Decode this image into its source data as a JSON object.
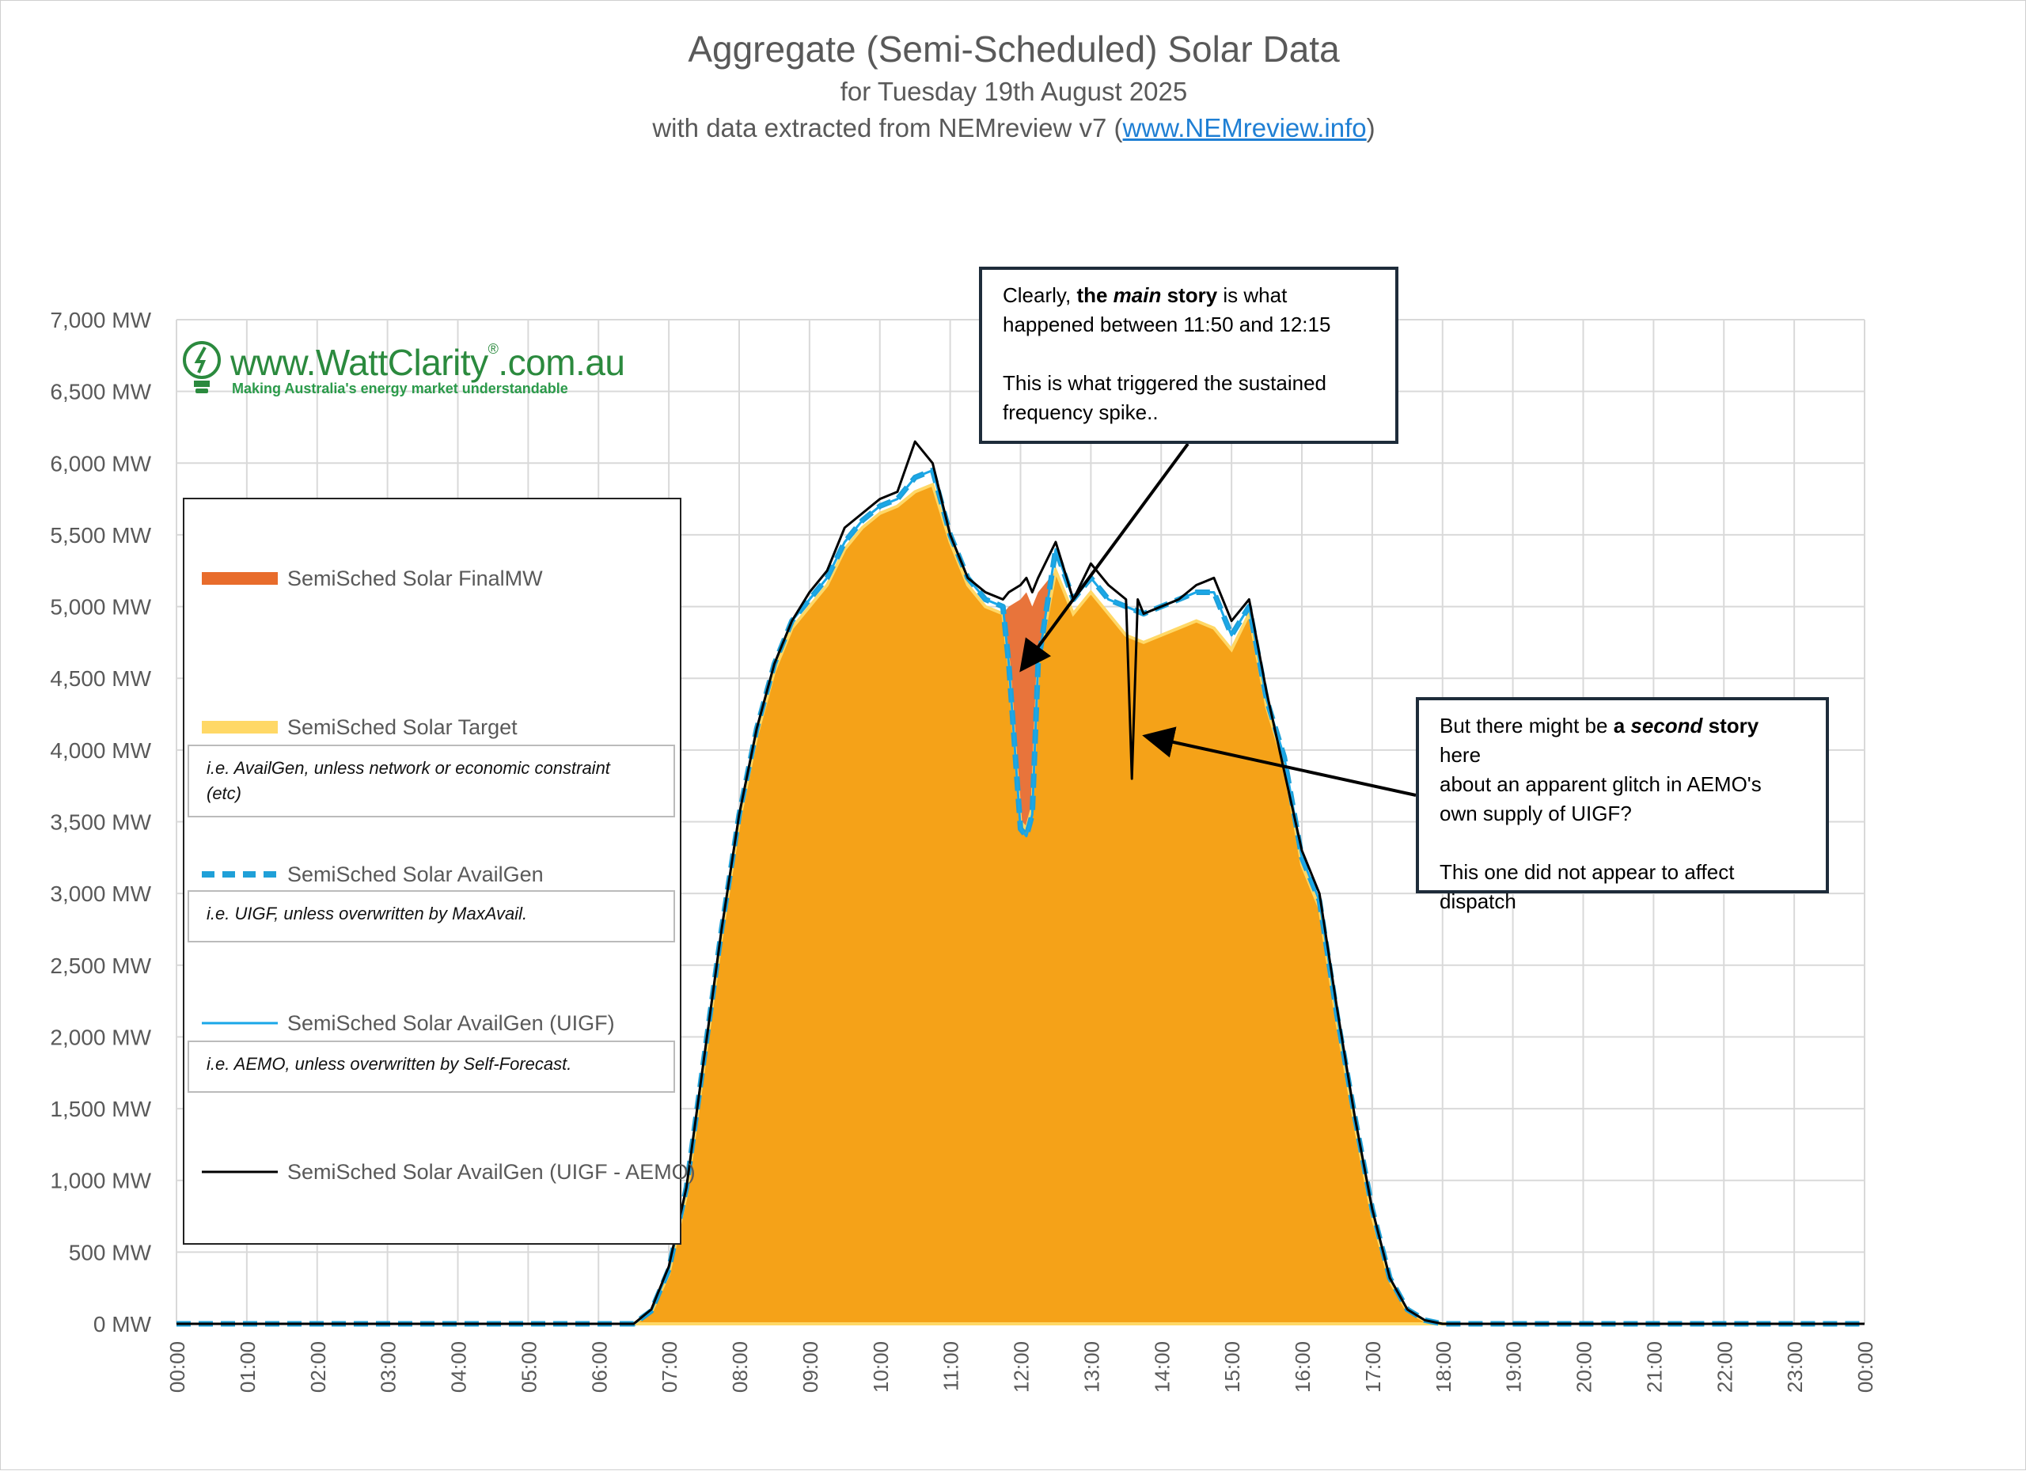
{
  "header": {
    "title": "Aggregate (Semi-Scheduled) Solar Data",
    "subtitle": "for Tuesday 19th August 2025",
    "source_prefix": "with data extracted from NEMreview v7 (",
    "source_link": "www.NEMreview.info",
    "source_suffix": ")"
  },
  "logo": {
    "url_text": "www.WattClarity",
    "url_suffix": ".com.au",
    "registered_mark": "®",
    "tagline": "Making Australia's energy market understandable"
  },
  "legend": {
    "items": [
      {
        "label": "SemiSched Solar FinalMW",
        "note": ""
      },
      {
        "label": "SemiSched Solar Target",
        "note_line1": "i.e. AvailGen, unless network or economic constraint",
        "note_line2": "(etc)"
      },
      {
        "label": "SemiSched Solar AvailGen",
        "note_line1": "i.e. UIGF, unless overwritten by MaxAvail.",
        "note_line2": ""
      },
      {
        "label": "SemiSched Solar AvailGen (UIGF)",
        "note_line1": "i.e. AEMO, unless overwritten by Self-Forecast.",
        "note_line2": ""
      },
      {
        "label": "SemiSched Solar AvailGen (UIGF - AEMO)",
        "note": ""
      }
    ]
  },
  "callouts": {
    "main": {
      "line1_pre": "Clearly, ",
      "line1_bold": "the ",
      "line1_bold_italic": "main",
      "line1_bold2": " story",
      "line1_post": " is what",
      "line2": "happened between 11:50 and 12:15",
      "line3": "This is what triggered the sustained",
      "line4": "frequency spike.."
    },
    "second": {
      "line1_pre": "But there might be ",
      "line1_bold": "a ",
      "line1_bold_italic": "second",
      "line1_bold2": " story",
      "line1_post": " here",
      "line2": "about an apparent glitch in AEMO's",
      "line3": "own supply of UIGF?",
      "line4": "This one did not appear to affect",
      "line5": "dispatch"
    }
  },
  "colors": {
    "finalmw": "#f5a218",
    "finalmw_legend": "#e86c2c",
    "curtailment_fill": "#e8743b",
    "target": "#ffd866",
    "availgen": "#1fa0d8",
    "uigf": "#1aa7e8",
    "uigf_aemo": "#000000",
    "grid": "#d9d9d9",
    "axis_text": "#595959"
  },
  "chart_data": {
    "type": "area",
    "title": "Aggregate (Semi-Scheduled) Solar Data",
    "xlabel": "",
    "ylabel": "",
    "ylim": [
      0,
      7000
    ],
    "y_ticks": [
      0,
      500,
      1000,
      1500,
      2000,
      2500,
      3000,
      3500,
      4000,
      4500,
      5000,
      5500,
      6000,
      6500,
      7000
    ],
    "y_tick_labels": [
      "0 MW",
      "500 MW",
      "1,000 MW",
      "1,500 MW",
      "2,000 MW",
      "2,500 MW",
      "3,000 MW",
      "3,500 MW",
      "4,000 MW",
      "4,500 MW",
      "5,000 MW",
      "5,500 MW",
      "6,000 MW",
      "6,500 MW",
      "7,000 MW"
    ],
    "x_tick_labels": [
      "00:00",
      "01:00",
      "02:00",
      "03:00",
      "04:00",
      "05:00",
      "06:00",
      "07:00",
      "08:00",
      "09:00",
      "10:00",
      "11:00",
      "12:00",
      "13:00",
      "14:00",
      "15:00",
      "16:00",
      "17:00",
      "18:00",
      "19:00",
      "20:00",
      "21:00",
      "22:00",
      "23:00",
      "00:00"
    ],
    "grid": true,
    "legend_position": "left",
    "series": [
      {
        "name": "SemiSched Solar FinalMW",
        "x": [
          "06:30",
          "06:45",
          "07:00",
          "07:15",
          "07:30",
          "07:45",
          "08:00",
          "08:15",
          "08:30",
          "08:45",
          "09:00",
          "09:15",
          "09:30",
          "09:45",
          "10:00",
          "10:15",
          "10:30",
          "10:45",
          "11:00",
          "11:15",
          "11:30",
          "11:45",
          "11:50",
          "12:00",
          "12:05",
          "12:10",
          "12:15",
          "12:30",
          "12:45",
          "13:00",
          "13:15",
          "13:30",
          "13:45",
          "14:00",
          "14:15",
          "14:30",
          "14:45",
          "15:00",
          "15:15",
          "15:30",
          "15:45",
          "16:00",
          "16:15",
          "16:30",
          "16:45",
          "17:00",
          "17:15",
          "17:30",
          "17:45",
          "18:00",
          "18:15"
        ],
        "values": [
          0,
          80,
          350,
          900,
          1800,
          2700,
          3500,
          4100,
          4550,
          4850,
          5000,
          5150,
          5400,
          5550,
          5650,
          5700,
          5800,
          5850,
          5450,
          5150,
          5000,
          4950,
          5000,
          5050,
          5100,
          5000,
          5100,
          5250,
          4950,
          5100,
          4950,
          4800,
          4750,
          4800,
          4850,
          4900,
          4850,
          4700,
          4950,
          4300,
          3900,
          3200,
          2900,
          2100,
          1400,
          750,
          300,
          90,
          20,
          0,
          0
        ]
      },
      {
        "name": "SemiSched Solar Target",
        "x": [
          "06:30",
          "06:45",
          "07:00",
          "07:15",
          "07:30",
          "07:45",
          "08:00",
          "08:15",
          "08:30",
          "08:45",
          "09:00",
          "09:15",
          "09:30",
          "09:45",
          "10:00",
          "10:15",
          "10:30",
          "10:45",
          "11:00",
          "11:15",
          "11:30",
          "11:45",
          "11:50",
          "12:00",
          "12:05",
          "12:10",
          "12:15",
          "12:30",
          "12:45",
          "13:00",
          "13:15",
          "13:30",
          "13:45",
          "14:00",
          "14:15",
          "14:30",
          "14:45",
          "15:00",
          "15:15",
          "15:30",
          "15:45",
          "16:00",
          "16:15",
          "16:30",
          "16:45",
          "17:00",
          "17:15",
          "17:30",
          "17:45",
          "18:00",
          "18:15"
        ],
        "values": [
          0,
          80,
          350,
          900,
          1800,
          2700,
          3500,
          4100,
          4550,
          4850,
          5000,
          5150,
          5400,
          5550,
          5650,
          5700,
          5800,
          5850,
          5450,
          5150,
          5000,
          4950,
          4600,
          3500,
          3450,
          3600,
          4600,
          5250,
          4950,
          5100,
          4950,
          4800,
          4750,
          4800,
          4850,
          4900,
          4850,
          4700,
          4950,
          4300,
          3900,
          3200,
          2900,
          2100,
          1400,
          750,
          300,
          90,
          20,
          0,
          0
        ]
      },
      {
        "name": "SemiSched Solar AvailGen",
        "x": [
          "06:30",
          "06:45",
          "07:00",
          "07:15",
          "07:30",
          "07:45",
          "08:00",
          "08:15",
          "08:30",
          "08:45",
          "09:00",
          "09:15",
          "09:30",
          "09:45",
          "10:00",
          "10:15",
          "10:30",
          "10:45",
          "11:00",
          "11:15",
          "11:30",
          "11:45",
          "11:50",
          "12:00",
          "12:05",
          "12:10",
          "12:15",
          "12:30",
          "12:45",
          "13:00",
          "13:15",
          "13:30",
          "13:45",
          "14:00",
          "14:15",
          "14:30",
          "14:45",
          "15:00",
          "15:15",
          "15:30",
          "15:45",
          "16:00",
          "16:15",
          "16:30",
          "16:45",
          "17:00",
          "17:15",
          "17:30",
          "17:45",
          "18:00",
          "18:15"
        ],
        "values": [
          0,
          90,
          380,
          950,
          1850,
          2750,
          3550,
          4150,
          4600,
          4900,
          5050,
          5200,
          5450,
          5600,
          5700,
          5750,
          5900,
          5950,
          5500,
          5200,
          5050,
          5000,
          4600,
          3450,
          3400,
          3550,
          4600,
          5400,
          5050,
          5200,
          5050,
          5000,
          4950,
          5000,
          5050,
          5100,
          5100,
          4800,
          5000,
          4350,
          3950,
          3250,
          2950,
          2150,
          1450,
          800,
          320,
          100,
          25,
          0,
          0
        ]
      },
      {
        "name": "SemiSched Solar AvailGen (UIGF)",
        "x": [
          "06:30",
          "06:45",
          "07:00",
          "07:15",
          "07:30",
          "07:45",
          "08:00",
          "08:15",
          "08:30",
          "08:45",
          "09:00",
          "09:15",
          "09:30",
          "09:45",
          "10:00",
          "10:15",
          "10:30",
          "10:45",
          "11:00",
          "11:15",
          "11:30",
          "11:45",
          "11:50",
          "12:00",
          "12:05",
          "12:10",
          "12:15",
          "12:30",
          "12:45",
          "13:00",
          "13:15",
          "13:30",
          "13:45",
          "14:00",
          "14:15",
          "14:30",
          "14:45",
          "15:00",
          "15:15",
          "15:30",
          "15:45",
          "16:00",
          "16:15",
          "16:30",
          "16:45",
          "17:00",
          "17:15",
          "17:30",
          "17:45",
          "18:00",
          "18:15"
        ],
        "values": [
          0,
          90,
          380,
          950,
          1850,
          2750,
          3550,
          4150,
          4600,
          4900,
          5050,
          5200,
          5450,
          5600,
          5700,
          5750,
          5900,
          5950,
          5500,
          5200,
          5050,
          5000,
          4600,
          3450,
          3400,
          3550,
          4600,
          5400,
          5050,
          5200,
          5050,
          5000,
          4950,
          5000,
          5050,
          5100,
          5100,
          4800,
          5000,
          4350,
          3950,
          3250,
          2950,
          2150,
          1450,
          800,
          320,
          100,
          25,
          0,
          0
        ]
      },
      {
        "name": "SemiSched Solar AvailGen (UIGF - AEMO)",
        "x": [
          "06:30",
          "06:45",
          "07:00",
          "07:15",
          "07:30",
          "07:45",
          "08:00",
          "08:15",
          "08:30",
          "08:45",
          "09:00",
          "09:15",
          "09:30",
          "09:45",
          "10:00",
          "10:15",
          "10:30",
          "10:45",
          "11:00",
          "11:15",
          "11:30",
          "11:45",
          "11:50",
          "12:00",
          "12:05",
          "12:10",
          "12:15",
          "12:30",
          "12:45",
          "13:00",
          "13:15",
          "13:30",
          "13:35",
          "13:40",
          "13:45",
          "14:00",
          "14:15",
          "14:30",
          "14:45",
          "15:00",
          "15:15",
          "15:30",
          "15:45",
          "16:00",
          "16:15",
          "16:30",
          "16:45",
          "17:00",
          "17:15",
          "17:30",
          "17:45",
          "18:00",
          "18:15"
        ],
        "values": [
          0,
          100,
          400,
          950,
          1850,
          2750,
          3550,
          4150,
          4600,
          4900,
          5100,
          5250,
          5550,
          5650,
          5750,
          5800,
          6150,
          6000,
          5500,
          5200,
          5100,
          5050,
          5100,
          5150,
          5200,
          5100,
          5200,
          5450,
          5050,
          5300,
          5150,
          5050,
          3800,
          5050,
          4950,
          5000,
          5050,
          5150,
          5200,
          4900,
          5050,
          4400,
          3850,
          3300,
          3000,
          2200,
          1450,
          800,
          320,
          100,
          25,
          0,
          0
        ]
      }
    ],
    "annotations": [
      {
        "text": "Clearly, the main story is what happened between 11:50 and 12:15 — This is what triggered the sustained frequency spike..",
        "points_to": "12:00"
      },
      {
        "text": "But there might be a second story here about an apparent glitch in AEMO's own supply of UIGF? This one did not appear to affect dispatch",
        "points_to": "13:35"
      }
    ]
  }
}
